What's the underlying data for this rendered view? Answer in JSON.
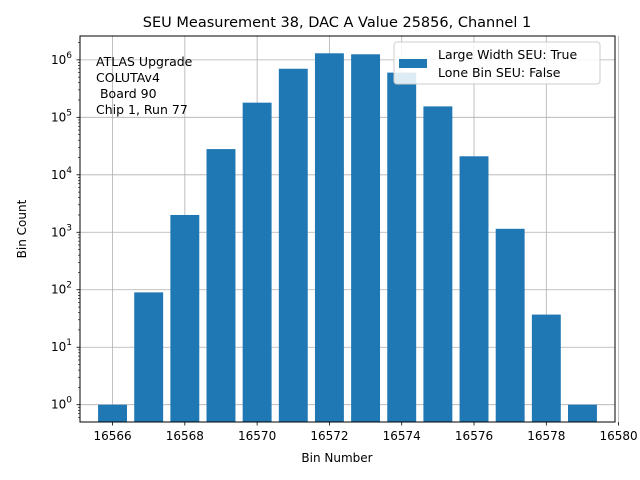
{
  "chart_data": {
    "type": "bar",
    "title": "SEU Measurement 38, DAC A Value 25856, Channel 1",
    "xlabel": "Bin Number",
    "ylabel": "Bin Count",
    "yscale": "log",
    "x": [
      16566,
      16567,
      16568,
      16569,
      16570,
      16571,
      16572,
      16573,
      16574,
      16575,
      16576,
      16577,
      16578,
      16579
    ],
    "values": [
      1,
      90,
      2000,
      28000,
      180000,
      700000,
      1300000,
      1250000,
      600000,
      155000,
      21000,
      1150,
      37,
      1
    ],
    "xlim": [
      16565.1,
      16579.9
    ],
    "ylim": [
      0.5,
      2600000
    ],
    "xticks": [
      16566,
      16568,
      16570,
      16572,
      16574,
      16576,
      16578,
      16580
    ],
    "xtick_labels": [
      "16566",
      "16568",
      "16570",
      "16572",
      "16574",
      "16576",
      "16578",
      "16580"
    ],
    "yticks": [
      {
        "base": "10",
        "exp": "0",
        "value": 1
      },
      {
        "base": "10",
        "exp": "1",
        "value": 10
      },
      {
        "base": "10",
        "exp": "2",
        "value": 100
      },
      {
        "base": "10",
        "exp": "3",
        "value": 1000
      },
      {
        "base": "10",
        "exp": "4",
        "value": 10000
      },
      {
        "base": "10",
        "exp": "5",
        "value": 100000
      },
      {
        "base": "10",
        "exp": "6",
        "value": 1000000
      }
    ],
    "grid": true,
    "bar_color": "#1f77b4",
    "legend": {
      "position": "top-right",
      "line1": "Large Width SEU: True",
      "line2": "Lone Bin SEU: False"
    },
    "annotation": {
      "line1": "ATLAS Upgrade",
      "line2": "COLUTAv4",
      "line3": " Board 90",
      "line4": "Chip 1, Run 77"
    }
  }
}
